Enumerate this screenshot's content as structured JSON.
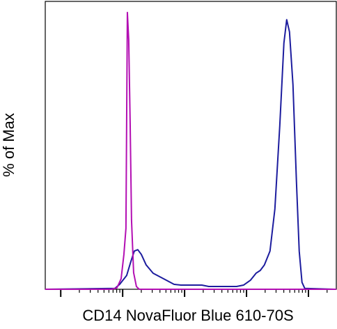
{
  "chart_data": {
    "type": "line",
    "xlabel": "CD14 NovaFluor Blue 610-70S",
    "ylabel": "% of Max",
    "xscale": "log",
    "xlim": [
      -0.25,
      4.45
    ],
    "ylim": [
      0,
      104
    ],
    "xticks": [
      0,
      1,
      2,
      3,
      4
    ],
    "xminor_ticks": [
      0.301,
      0.477,
      0.602,
      0.699,
      0.778,
      0.845,
      0.903,
      0.954,
      1.301,
      1.477,
      1.602,
      1.699,
      1.778,
      1.845,
      1.903,
      1.954,
      2.301,
      2.477,
      2.602,
      2.699,
      2.778,
      2.845,
      2.903,
      2.954,
      3.301,
      3.477,
      3.602,
      3.699,
      3.778,
      3.845,
      3.903,
      3.954,
      4.301
    ],
    "series": [
      {
        "color": "#b30fb3",
        "x": [
          -0.25,
          0.817,
          0.907,
          0.975,
          1.02,
          1.053,
          1.076,
          1.098,
          1.121,
          1.143,
          1.177,
          1.222,
          1.267,
          4.45
        ],
        "values": [
          0,
          0,
          0.5,
          3.8,
          12.6,
          22,
          100,
          90,
          60,
          25,
          6,
          1,
          0,
          0
        ]
      },
      {
        "color": "#1c1c9e",
        "x": [
          -0.25,
          0.874,
          0.952,
          1.065,
          1.132,
          1.188,
          1.244,
          1.301,
          1.379,
          1.492,
          1.66,
          1.829,
          1.941,
          2.278,
          2.39,
          2.84,
          2.952,
          3.065,
          3.154,
          3.222,
          3.289,
          3.379,
          3.458,
          3.537,
          3.604,
          3.649,
          3.694,
          3.75,
          3.806,
          3.851,
          3.896,
          3.941,
          4.413
        ],
        "values": [
          0,
          0.3,
          1.8,
          5,
          10,
          13.8,
          14.3,
          12.6,
          8.8,
          5.8,
          3.8,
          1.8,
          1.5,
          1.5,
          1,
          1,
          1.5,
          3.3,
          5.8,
          6.8,
          8.8,
          13.8,
          29,
          59,
          89,
          97.4,
          93,
          74,
          39,
          13.8,
          2.5,
          0.3,
          0
        ]
      }
    ]
  }
}
